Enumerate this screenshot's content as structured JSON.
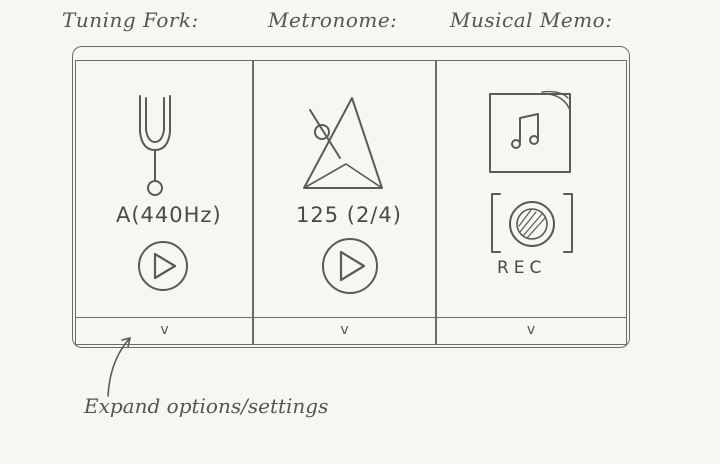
{
  "headers": {
    "tuning_fork": "Tuning Fork:",
    "metronome": "Metronome:",
    "musical_memo": "Musical Memo:"
  },
  "tuning_fork": {
    "note_label": "A(440Hz)",
    "icon": "tuning-fork-icon",
    "play_icon": "play-icon"
  },
  "metronome": {
    "tempo_label": "125 (2/4)",
    "icon": "metronome-icon",
    "play_icon": "play-icon"
  },
  "musical_memo": {
    "icon": "music-note-icon",
    "record_label": "REC",
    "record_icon": "record-icon"
  },
  "expand": {
    "chevron": "v",
    "annotation": "Expand options/settings"
  }
}
